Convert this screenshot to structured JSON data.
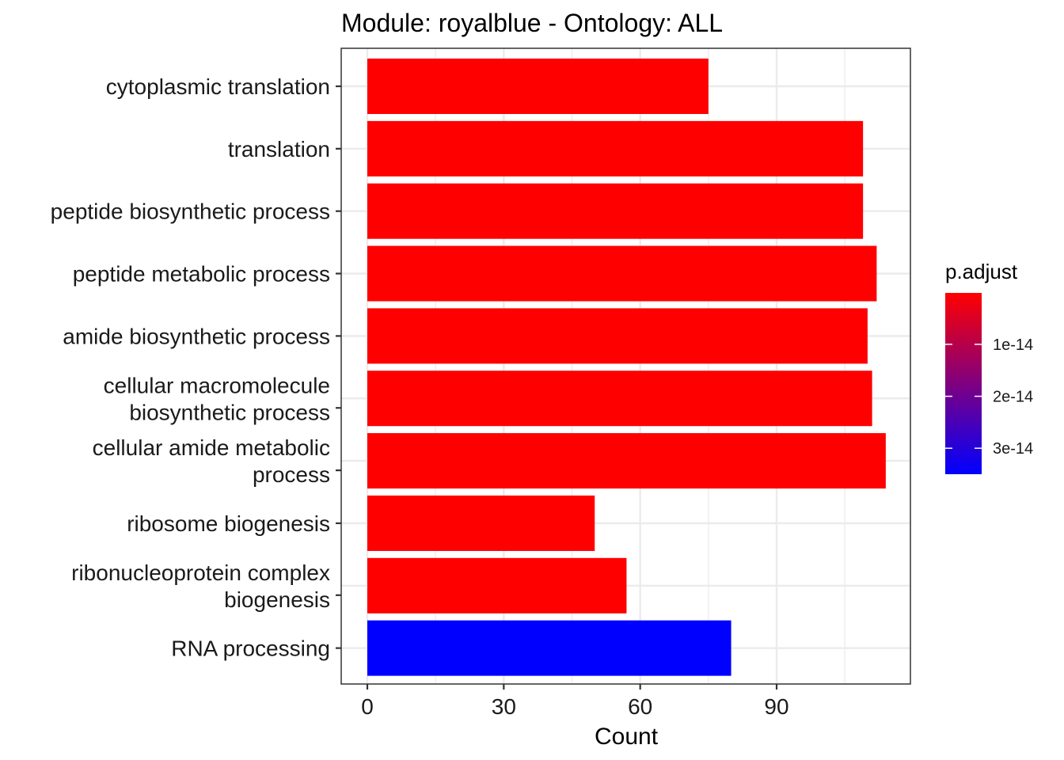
{
  "chart_data": {
    "type": "bar",
    "orientation": "horizontal",
    "title": "Module: royalblue - Ontology: ALL",
    "xlabel": "Count",
    "ylabel": "",
    "xlim": [
      -2.8,
      120
    ],
    "xticks": [
      0,
      30,
      60,
      90
    ],
    "grid": true,
    "categories": [
      [
        "cytoplasmic translation"
      ],
      [
        "translation"
      ],
      [
        "peptide biosynthetic process"
      ],
      [
        "peptide metabolic process"
      ],
      [
        "amide biosynthetic process"
      ],
      [
        "cellular macromolecule",
        "biosynthetic process"
      ],
      [
        "cellular amide metabolic",
        "process"
      ],
      [
        "ribosome biogenesis"
      ],
      [
        "ribonucleoprotein complex",
        "biogenesis"
      ],
      [
        "RNA processing"
      ]
    ],
    "values": [
      75,
      109,
      109,
      112,
      110,
      111,
      114,
      50,
      57,
      80
    ],
    "p_adjust": [
      1e-16,
      1e-16,
      1e-16,
      1e-16,
      1e-16,
      1e-16,
      1e-16,
      1e-16,
      1e-16,
      3.5e-14
    ],
    "colors": [
      "#ff0000",
      "#ff0000",
      "#ff0000",
      "#ff0000",
      "#ff0000",
      "#ff0000",
      "#ff0000",
      "#ff0000",
      "#ff0000",
      "#0000ff"
    ],
    "legend": {
      "title": "p.adjust",
      "position": "right",
      "low_color": "#ff0000",
      "high_color": "#0000ff",
      "range": [
        1e-16,
        3.5e-14
      ],
      "ticks": [
        {
          "label": "1e-14",
          "value": 1e-14
        },
        {
          "label": "2e-14",
          "value": 2e-14
        },
        {
          "label": "3e-14",
          "value": 3e-14
        }
      ]
    }
  }
}
